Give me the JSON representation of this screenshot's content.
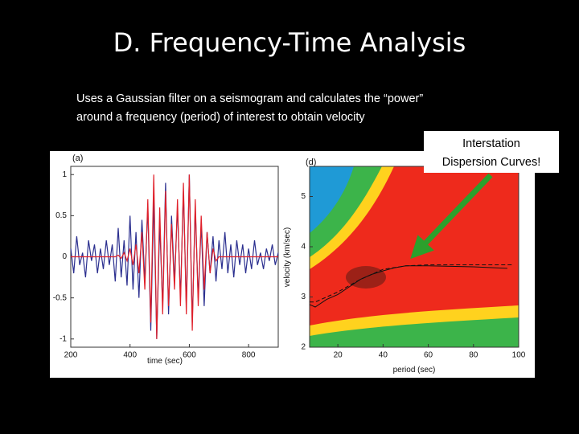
{
  "title": "D. Frequency-Time Analysis",
  "body": [
    "Uses a Gaussian filter on a seismogram and calculates the “power”",
    "around a frequency (period) of interest to obtain velocity"
  ],
  "callout": [
    "Interstation",
    "Dispersion Curves!"
  ],
  "chart_data": [
    {
      "type": "line",
      "panel_label": "(a)",
      "x_label": "time (sec)",
      "x": [
        200,
        210,
        220,
        230,
        240,
        250,
        260,
        270,
        280,
        290,
        300,
        310,
        320,
        330,
        340,
        350,
        360,
        370,
        380,
        390,
        400,
        410,
        420,
        430,
        440,
        450,
        460,
        470,
        480,
        490,
        500,
        510,
        520,
        530,
        540,
        550,
        560,
        570,
        580,
        590,
        600,
        610,
        620,
        630,
        640,
        650,
        660,
        670,
        680,
        690,
        700,
        710,
        720,
        730,
        740,
        750,
        760,
        770,
        780,
        790,
        800,
        810,
        820,
        830,
        840,
        850,
        860,
        870,
        880,
        890,
        900
      ],
      "xlim": [
        200,
        900
      ],
      "xticks": [
        200,
        400,
        600,
        800
      ],
      "ylim": [
        -1.1,
        1.1
      ],
      "yticks": [
        -1,
        -0.5,
        0,
        0.5,
        1
      ],
      "series": [
        {
          "color": "#2b2f8f",
          "values": [
            0.1,
            -0.2,
            0.25,
            -0.1,
            0.05,
            -0.25,
            0.2,
            -0.05,
            0.15,
            -0.2,
            0.1,
            -0.15,
            0.2,
            -0.1,
            0.15,
            -0.3,
            0.35,
            -0.25,
            0.2,
            -0.35,
            0.5,
            -0.4,
            0.3,
            -0.5,
            0.45,
            -0.3,
            0.6,
            -0.9,
            0.7,
            -1.0,
            0.4,
            -0.6,
            0.9,
            -0.7,
            0.5,
            -0.3,
            0.6,
            -0.5,
            0.8,
            -0.6,
            1.0,
            -0.8,
            0.6,
            -0.5,
            0.4,
            -0.6,
            0.3,
            -0.2,
            0.25,
            -0.3,
            0.2,
            -0.15,
            0.3,
            -0.2,
            0.15,
            -0.25,
            0.2,
            -0.1,
            0.15,
            -0.2,
            0.1,
            -0.15,
            0.2,
            -0.1,
            0.05,
            -0.15,
            0.1,
            -0.05,
            0.15,
            -0.1,
            0.05
          ]
        },
        {
          "color": "#e0202a",
          "values": [
            0,
            0,
            0,
            0,
            0,
            0,
            0,
            0,
            0,
            0,
            0,
            0,
            0,
            0,
            0,
            0,
            0.02,
            -0.02,
            0.05,
            -0.05,
            0.1,
            -0.1,
            0.15,
            -0.2,
            0.3,
            -0.4,
            0.7,
            -0.8,
            1.0,
            -1.0,
            0.6,
            -0.7,
            0.8,
            -0.6,
            0.4,
            -0.4,
            0.7,
            -0.6,
            0.9,
            -0.7,
            1.0,
            -0.9,
            0.7,
            -0.6,
            0.5,
            -0.4,
            0.3,
            -0.2,
            0.1,
            -0.05,
            0,
            0,
            0,
            0,
            0,
            0,
            0,
            0,
            0,
            0,
            0,
            0,
            0,
            0,
            0,
            0,
            0,
            0,
            0,
            0,
            0
          ]
        }
      ]
    },
    {
      "type": "line",
      "panel_label": "(d)",
      "x_label": "period (sec)",
      "y_label": "velocity (km/sec)",
      "xlim": [
        7.5,
        100
      ],
      "xticks": [
        20,
        40,
        60,
        80,
        100
      ],
      "ylim": [
        2,
        5.6
      ],
      "yticks": [
        2,
        3,
        4,
        5
      ],
      "series": [
        {
          "color": "#111111",
          "dashed": false,
          "x": [
            7.5,
            10,
            15,
            20,
            25,
            30,
            35,
            40,
            45,
            50,
            55,
            60,
            70,
            80,
            90,
            95
          ],
          "values": [
            2.85,
            2.8,
            2.95,
            3.05,
            3.2,
            3.35,
            3.45,
            3.52,
            3.58,
            3.62,
            3.62,
            3.62,
            3.61,
            3.6,
            3.58,
            3.57
          ]
        },
        {
          "color": "#111111",
          "dashed": true,
          "x": [
            7.5,
            10,
            20,
            30,
            40,
            50,
            60,
            70,
            80,
            90,
            97
          ],
          "values": [
            2.9,
            2.9,
            3.1,
            3.35,
            3.55,
            3.62,
            3.64,
            3.64,
            3.64,
            3.64,
            3.64
          ]
        }
      ]
    }
  ]
}
